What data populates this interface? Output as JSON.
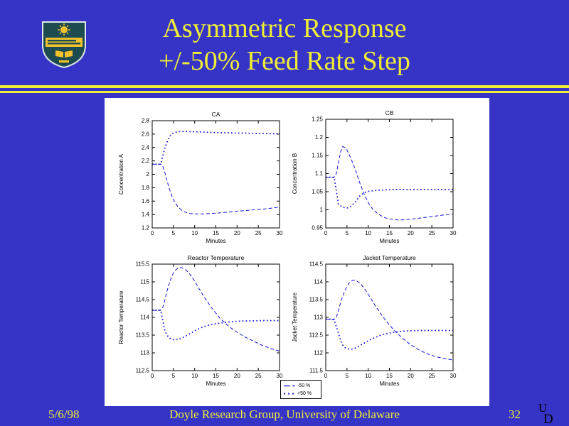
{
  "slide": {
    "title_line1": "Asymmetric Response",
    "title_line2": "+/-50% Feed Rate Step",
    "footer": {
      "date": "5/6/98",
      "credit": "Doyle Research Group, University of Delaware",
      "page_number": "32"
    },
    "logo_monogram": {
      "u": "U",
      "d": "D"
    },
    "colors": {
      "background": "#3634c6",
      "accent_yellow": "#f0ee33",
      "plot_line": "#1313d8",
      "panel": "#ffffff"
    }
  },
  "legend": {
    "position": "bottom-center",
    "entries": [
      {
        "label": "-50 %",
        "line_style": "dashed"
      },
      {
        "label": "+50 %",
        "line_style": "dotted"
      }
    ]
  },
  "chart_data": [
    {
      "id": "concentration-a",
      "type": "line",
      "title": "CA",
      "xlabel": "Minutes",
      "ylabel": "Concentration A",
      "xlim": [
        0,
        30
      ],
      "ylim": [
        1.2,
        2.8
      ],
      "xticks": [
        0,
        5,
        10,
        15,
        20,
        25,
        30
      ],
      "yticks": [
        1.2,
        1.4,
        1.6,
        1.8,
        2,
        2.2,
        2.4,
        2.6,
        2.8
      ],
      "grid": false,
      "series": [
        {
          "name": "-50 %",
          "line_style": "dashed",
          "x": [
            0,
            2,
            2.5,
            3,
            3.5,
            4,
            4.5,
            5,
            6,
            7,
            8,
            9,
            10,
            12,
            14,
            16,
            18,
            20,
            22,
            24,
            26,
            28,
            30
          ],
          "y": [
            2.15,
            2.15,
            2.12,
            2.02,
            1.9,
            1.79,
            1.7,
            1.62,
            1.52,
            1.46,
            1.43,
            1.415,
            1.41,
            1.41,
            1.415,
            1.425,
            1.435,
            1.45,
            1.46,
            1.47,
            1.48,
            1.495,
            1.51
          ]
        },
        {
          "name": "+50 %",
          "line_style": "dotted",
          "x": [
            0,
            1,
            2,
            3,
            4,
            5,
            6,
            7,
            8,
            10,
            12,
            14,
            16,
            18,
            20,
            22,
            24,
            26,
            28,
            30
          ],
          "y": [
            2.15,
            2.15,
            2.15,
            2.4,
            2.56,
            2.62,
            2.635,
            2.64,
            2.64,
            2.635,
            2.63,
            2.625,
            2.62,
            2.62,
            2.615,
            2.615,
            2.61,
            2.61,
            2.605,
            2.605
          ]
        }
      ]
    },
    {
      "id": "concentration-b",
      "type": "line",
      "title": "CB",
      "xlabel": "Minutes",
      "ylabel": "Concentration B",
      "xlim": [
        0,
        30
      ],
      "ylim": [
        0.95,
        1.25
      ],
      "xticks": [
        0,
        5,
        10,
        15,
        20,
        25,
        30
      ],
      "yticks": [
        0.95,
        1,
        1.05,
        1.1,
        1.15,
        1.2,
        1.25
      ],
      "grid": false,
      "series": [
        {
          "name": "-50 %",
          "line_style": "dashed",
          "x": [
            0,
            2,
            2.5,
            3,
            3.5,
            4,
            4.5,
            5,
            6,
            7,
            8,
            9,
            10,
            11,
            12,
            13,
            14,
            15,
            16,
            17,
            18,
            20,
            22,
            24,
            26,
            28,
            30
          ],
          "y": [
            1.09,
            1.09,
            1.1,
            1.13,
            1.16,
            1.175,
            1.172,
            1.165,
            1.14,
            1.11,
            1.075,
            1.045,
            1.02,
            1.003,
            0.992,
            0.984,
            0.978,
            0.975,
            0.973,
            0.972,
            0.972,
            0.974,
            0.977,
            0.98,
            0.983,
            0.986,
            0.988
          ]
        },
        {
          "name": "+50 %",
          "line_style": "dotted",
          "x": [
            0,
            1,
            2,
            3,
            4,
            5,
            6,
            7,
            8,
            9,
            10,
            12,
            14,
            16,
            18,
            20,
            22,
            24,
            26,
            28,
            30
          ],
          "y": [
            1.09,
            1.09,
            1.09,
            1.015,
            1.007,
            1.005,
            1.01,
            1.022,
            1.038,
            1.047,
            1.051,
            1.054,
            1.055,
            1.056,
            1.056,
            1.056,
            1.056,
            1.056,
            1.056,
            1.056,
            1.056
          ]
        }
      ]
    },
    {
      "id": "reactor-temperature",
      "type": "line",
      "title": "Reactor Temperature",
      "xlabel": "Minutes",
      "ylabel": "Reactor Temperature",
      "xlim": [
        0,
        30
      ],
      "ylim": [
        112.5,
        115.5
      ],
      "xticks": [
        0,
        5,
        10,
        15,
        20,
        25,
        30
      ],
      "yticks": [
        112.5,
        113,
        113.5,
        114,
        114.5,
        115,
        115.5
      ],
      "grid": false,
      "series": [
        {
          "name": "-50 %",
          "line_style": "dashed",
          "x": [
            0,
            2,
            2.5,
            3,
            3.5,
            4,
            4.5,
            5,
            5.5,
            6,
            6.5,
            7,
            8,
            9,
            10,
            11,
            12,
            14,
            16,
            18,
            20,
            22,
            24,
            26,
            28,
            30
          ],
          "y": [
            114.2,
            114.2,
            114.28,
            114.5,
            114.75,
            114.95,
            115.12,
            115.25,
            115.33,
            115.38,
            115.4,
            115.4,
            115.33,
            115.2,
            115.02,
            114.82,
            114.62,
            114.27,
            113.97,
            113.75,
            113.58,
            113.44,
            113.32,
            113.21,
            113.12,
            113.05
          ]
        },
        {
          "name": "+50 %",
          "line_style": "dotted",
          "x": [
            0,
            1,
            2,
            3,
            3.5,
            4,
            4.5,
            5,
            5.5,
            6,
            6.5,
            7,
            8,
            9,
            10,
            11,
            12,
            13,
            14,
            15,
            16,
            18,
            20,
            22,
            24,
            26,
            28,
            30
          ],
          "y": [
            114.2,
            114.2,
            114.2,
            113.62,
            113.5,
            113.42,
            113.38,
            113.37,
            113.37,
            113.38,
            113.4,
            113.42,
            113.48,
            113.55,
            113.62,
            113.68,
            113.73,
            113.77,
            113.8,
            113.82,
            113.84,
            113.87,
            113.89,
            113.9,
            113.9,
            113.91,
            113.91,
            113.91
          ]
        }
      ]
    },
    {
      "id": "jacket-temperature",
      "type": "line",
      "title": "Jacket Temperature",
      "xlabel": "Minutes",
      "ylabel": "Jacket Temperature",
      "xlim": [
        0,
        30
      ],
      "ylim": [
        111.5,
        114.5
      ],
      "xticks": [
        0,
        5,
        10,
        15,
        20,
        25,
        30
      ],
      "yticks": [
        111.5,
        112,
        112.5,
        113,
        113.5,
        114,
        114.5
      ],
      "grid": false,
      "series": [
        {
          "name": "-50 %",
          "line_style": "dashed",
          "x": [
            0,
            2,
            2.5,
            3,
            3.5,
            4,
            4.5,
            5,
            5.5,
            6,
            6.5,
            7,
            8,
            9,
            10,
            11,
            12,
            14,
            16,
            18,
            20,
            22,
            24,
            26,
            28,
            30
          ],
          "y": [
            112.95,
            112.95,
            113,
            113.2,
            113.42,
            113.6,
            113.75,
            113.87,
            113.97,
            114.02,
            114.05,
            114.05,
            113.97,
            113.83,
            113.65,
            113.46,
            113.27,
            112.93,
            112.65,
            112.42,
            112.23,
            112.08,
            111.97,
            111.89,
            111.84,
            111.8
          ]
        },
        {
          "name": "+50 %",
          "line_style": "dotted",
          "x": [
            0,
            1,
            2,
            3,
            3.5,
            4,
            4.5,
            5,
            6,
            7,
            8,
            9,
            10,
            11,
            12,
            13,
            14,
            16,
            18,
            20,
            22,
            24,
            26,
            28,
            30
          ],
          "y": [
            112.95,
            112.95,
            112.93,
            112.55,
            112.35,
            112.22,
            112.15,
            112.12,
            112.1,
            112.14,
            112.2,
            112.27,
            112.34,
            112.4,
            112.45,
            112.5,
            112.53,
            112.58,
            112.61,
            112.62,
            112.63,
            112.63,
            112.63,
            112.63,
            112.63
          ]
        }
      ]
    }
  ]
}
